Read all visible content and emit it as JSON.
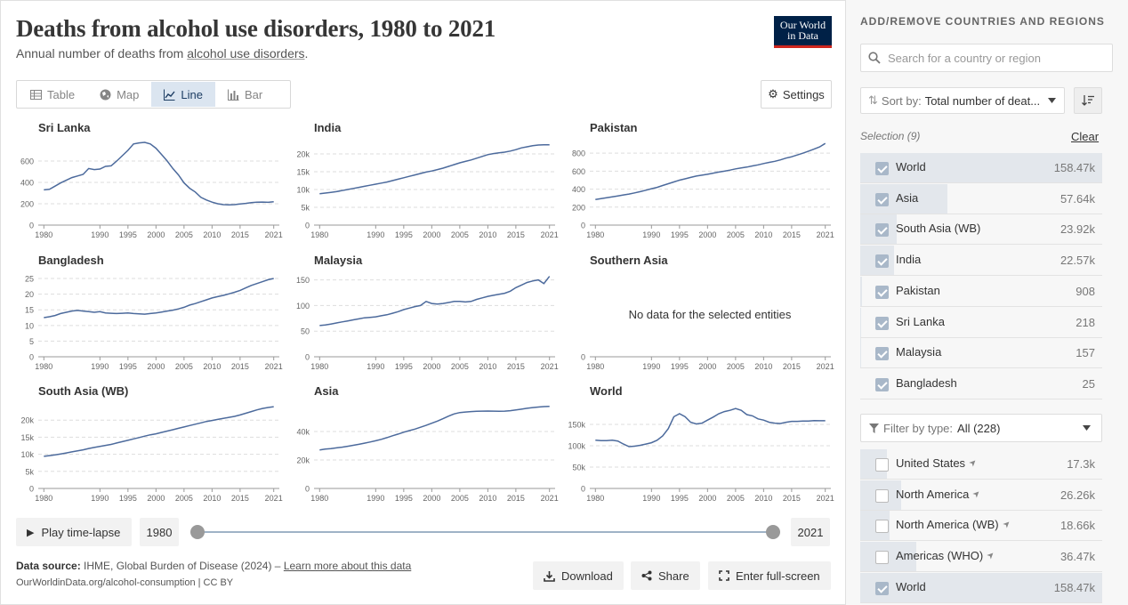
{
  "header": {
    "title": "Deaths from alcohol use disorders, 1980 to 2021",
    "subtitle_pre": "Annual number of deaths from ",
    "subtitle_link": "alcohol use disorders",
    "subtitle_post": ".",
    "logo_line1": "Our World",
    "logo_line2": "in Data"
  },
  "tabs": [
    {
      "label": "Table",
      "icon": "table-icon"
    },
    {
      "label": "Map",
      "icon": "globe-icon"
    },
    {
      "label": "Line",
      "icon": "line-chart-icon",
      "active": true
    },
    {
      "label": "Bar",
      "icon": "bar-chart-icon"
    }
  ],
  "settings_label": "Settings",
  "chart_data": [
    {
      "type": "line",
      "title": "Sri Lanka",
      "ylim": [
        0,
        800
      ],
      "yticks": [
        {
          "v": 0,
          "l": "0"
        },
        {
          "v": 200,
          "l": "200"
        },
        {
          "v": 400,
          "l": "400"
        },
        {
          "v": 600,
          "l": "600"
        }
      ],
      "x": [
        1980,
        1981,
        1982,
        1983,
        1984,
        1985,
        1986,
        1987,
        1988,
        1989,
        1990,
        1991,
        1992,
        1993,
        1994,
        1995,
        1996,
        1997,
        1998,
        1999,
        2000,
        2001,
        2002,
        2003,
        2004,
        2005,
        2006,
        2007,
        2008,
        2009,
        2010,
        2011,
        2012,
        2013,
        2014,
        2015,
        2016,
        2017,
        2018,
        2019,
        2020,
        2021
      ],
      "y": [
        330,
        335,
        365,
        395,
        420,
        445,
        460,
        475,
        530,
        520,
        525,
        550,
        555,
        600,
        650,
        700,
        760,
        770,
        775,
        760,
        720,
        660,
        600,
        530,
        470,
        395,
        345,
        310,
        260,
        235,
        215,
        200,
        192,
        190,
        192,
        198,
        203,
        210,
        214,
        216,
        213,
        218
      ]
    },
    {
      "type": "line",
      "title": "India",
      "ylim": [
        0,
        24000
      ],
      "yticks": [
        {
          "v": 0,
          "l": "0"
        },
        {
          "v": 5000,
          "l": "5k"
        },
        {
          "v": 10000,
          "l": "10k"
        },
        {
          "v": 15000,
          "l": "15k"
        },
        {
          "v": 20000,
          "l": "20k"
        }
      ],
      "x": [
        1980,
        1981,
        1982,
        1983,
        1984,
        1985,
        1986,
        1987,
        1988,
        1989,
        1990,
        1991,
        1992,
        1993,
        1994,
        1995,
        1996,
        1997,
        1998,
        1999,
        2000,
        2001,
        2002,
        2003,
        2004,
        2005,
        2006,
        2007,
        2008,
        2009,
        2010,
        2011,
        2012,
        2013,
        2014,
        2015,
        2016,
        2017,
        2018,
        2019,
        2020,
        2021
      ],
      "y": [
        8800,
        9000,
        9200,
        9400,
        9700,
        10000,
        10300,
        10600,
        10900,
        11200,
        11500,
        11800,
        12100,
        12500,
        12900,
        13300,
        13700,
        14100,
        14500,
        14900,
        15200,
        15600,
        16000,
        16500,
        17000,
        17500,
        17900,
        18300,
        18800,
        19300,
        19800,
        20100,
        20300,
        20500,
        20800,
        21200,
        21700,
        22000,
        22300,
        22500,
        22550,
        22570
      ]
    },
    {
      "type": "line",
      "title": "Pakistan",
      "ylim": [
        0,
        950
      ],
      "yticks": [
        {
          "v": 0,
          "l": "0"
        },
        {
          "v": 200,
          "l": "200"
        },
        {
          "v": 400,
          "l": "400"
        },
        {
          "v": 600,
          "l": "600"
        },
        {
          "v": 800,
          "l": "800"
        }
      ],
      "x": [
        1980,
        1981,
        1982,
        1983,
        1984,
        1985,
        1986,
        1987,
        1988,
        1989,
        1990,
        1991,
        1992,
        1993,
        1994,
        1995,
        1996,
        1997,
        1998,
        1999,
        2000,
        2001,
        2002,
        2003,
        2004,
        2005,
        2006,
        2007,
        2008,
        2009,
        2010,
        2011,
        2012,
        2013,
        2014,
        2015,
        2016,
        2017,
        2018,
        2019,
        2020,
        2021
      ],
      "y": [
        285,
        295,
        305,
        315,
        325,
        335,
        345,
        358,
        372,
        388,
        405,
        420,
        440,
        460,
        480,
        500,
        515,
        530,
        545,
        555,
        565,
        578,
        590,
        600,
        612,
        625,
        635,
        645,
        658,
        670,
        685,
        698,
        710,
        725,
        745,
        760,
        780,
        800,
        822,
        845,
        870,
        908
      ]
    },
    {
      "type": "line",
      "title": "Bangladesh",
      "ylim": [
        0,
        27
      ],
      "yticks": [
        {
          "v": 0,
          "l": "0"
        },
        {
          "v": 5,
          "l": "5"
        },
        {
          "v": 10,
          "l": "10"
        },
        {
          "v": 15,
          "l": "15"
        },
        {
          "v": 20,
          "l": "20"
        },
        {
          "v": 25,
          "l": "25"
        }
      ],
      "x": [
        1980,
        1981,
        1982,
        1983,
        1984,
        1985,
        1986,
        1987,
        1988,
        1989,
        1990,
        1991,
        1992,
        1993,
        1994,
        1995,
        1996,
        1997,
        1998,
        1999,
        2000,
        2001,
        2002,
        2003,
        2004,
        2005,
        2006,
        2007,
        2008,
        2009,
        2010,
        2011,
        2012,
        2013,
        2014,
        2015,
        2016,
        2017,
        2018,
        2019,
        2020,
        2021
      ],
      "y": [
        12.5,
        12.8,
        13.2,
        13.8,
        14.2,
        14.6,
        14.8,
        14.6,
        14.4,
        14.2,
        14.4,
        14.0,
        13.9,
        13.8,
        13.9,
        14.0,
        13.8,
        13.7,
        13.6,
        13.8,
        14.0,
        14.3,
        14.6,
        14.9,
        15.3,
        15.8,
        16.5,
        17.0,
        17.6,
        18.2,
        18.8,
        19.2,
        19.6,
        20.1,
        20.6,
        21.2,
        22.0,
        22.8,
        23.4,
        24.0,
        24.6,
        25.0
      ]
    },
    {
      "type": "line",
      "title": "Malaysia",
      "ylim": [
        0,
        165
      ],
      "yticks": [
        {
          "v": 0,
          "l": "0"
        },
        {
          "v": 50,
          "l": "50"
        },
        {
          "v": 100,
          "l": "100"
        },
        {
          "v": 150,
          "l": "150"
        }
      ],
      "x": [
        1980,
        1981,
        1982,
        1983,
        1984,
        1985,
        1986,
        1987,
        1988,
        1989,
        1990,
        1991,
        1992,
        1993,
        1994,
        1995,
        1996,
        1997,
        1998,
        1999,
        2000,
        2001,
        2002,
        2003,
        2004,
        2005,
        2006,
        2007,
        2008,
        2009,
        2010,
        2011,
        2012,
        2013,
        2014,
        2015,
        2016,
        2017,
        2018,
        2019,
        2020,
        2021
      ],
      "y": [
        61,
        62,
        64,
        66,
        68,
        70,
        72,
        74,
        76,
        77,
        78,
        80,
        82,
        85,
        88,
        92,
        95,
        98,
        100,
        108,
        104,
        103,
        104,
        106,
        108,
        108,
        107,
        108,
        112,
        115,
        118,
        120,
        122,
        124,
        128,
        135,
        140,
        145,
        148,
        150,
        143,
        157
      ]
    },
    {
      "type": "line",
      "title": "Southern Asia",
      "no_data": "No data for the selected entities",
      "ylim": [
        0,
        1
      ],
      "yticks": [
        {
          "v": 0,
          "l": "0"
        }
      ],
      "x": [],
      "y": []
    },
    {
      "type": "line",
      "title": "South Asia (WB)",
      "ylim": [
        0,
        25000
      ],
      "yticks": [
        {
          "v": 0,
          "l": "0"
        },
        {
          "v": 5000,
          "l": "5k"
        },
        {
          "v": 10000,
          "l": "10k"
        },
        {
          "v": 15000,
          "l": "15k"
        },
        {
          "v": 20000,
          "l": "20k"
        }
      ],
      "x": [
        1980,
        1981,
        1982,
        1983,
        1984,
        1985,
        1986,
        1987,
        1988,
        1989,
        1990,
        1991,
        1992,
        1993,
        1994,
        1995,
        1996,
        1997,
        1998,
        1999,
        2000,
        2001,
        2002,
        2003,
        2004,
        2005,
        2006,
        2007,
        2008,
        2009,
        2010,
        2011,
        2012,
        2013,
        2014,
        2015,
        2016,
        2017,
        2018,
        2019,
        2020,
        2021
      ],
      "y": [
        9400,
        9600,
        9850,
        10100,
        10400,
        10700,
        11000,
        11300,
        11700,
        12000,
        12300,
        12600,
        12900,
        13300,
        13700,
        14100,
        14500,
        14900,
        15300,
        15700,
        16000,
        16400,
        16800,
        17200,
        17600,
        18000,
        18400,
        18800,
        19200,
        19600,
        19900,
        20200,
        20500,
        20800,
        21100,
        21500,
        22000,
        22500,
        23000,
        23400,
        23700,
        23920
      ]
    },
    {
      "type": "line",
      "title": "Asia",
      "ylim": [
        0,
        60000
      ],
      "yticks": [
        {
          "v": 0,
          "l": "0"
        },
        {
          "v": 20000,
          "l": "20k"
        },
        {
          "v": 40000,
          "l": "40k"
        }
      ],
      "x": [
        1980,
        1981,
        1982,
        1983,
        1984,
        1985,
        1986,
        1987,
        1988,
        1989,
        1990,
        1991,
        1992,
        1993,
        1994,
        1995,
        1996,
        1997,
        1998,
        1999,
        2000,
        2001,
        2002,
        2003,
        2004,
        2005,
        2006,
        2007,
        2008,
        2009,
        2010,
        2011,
        2012,
        2013,
        2014,
        2015,
        2016,
        2017,
        2018,
        2019,
        2020,
        2021
      ],
      "y": [
        27000,
        27600,
        28000,
        28500,
        29000,
        29600,
        30300,
        31000,
        31800,
        32600,
        33500,
        34500,
        35700,
        37000,
        38200,
        39500,
        40600,
        41700,
        43000,
        44300,
        45800,
        47300,
        49000,
        50800,
        52400,
        53300,
        53700,
        54000,
        54200,
        54300,
        54400,
        54300,
        54200,
        54300,
        54600,
        55100,
        55700,
        56300,
        56800,
        57200,
        57500,
        57640
      ]
    },
    {
      "type": "line",
      "title": "World",
      "ylim": [
        0,
        200000
      ],
      "yticks": [
        {
          "v": 0,
          "l": "0"
        },
        {
          "v": 50000,
          "l": "50k"
        },
        {
          "v": 100000,
          "l": "100k"
        },
        {
          "v": 150000,
          "l": "150k"
        }
      ],
      "x": [
        1980,
        1981,
        1982,
        1983,
        1984,
        1985,
        1986,
        1987,
        1988,
        1989,
        1990,
        1991,
        1992,
        1993,
        1994,
        1995,
        1996,
        1997,
        1998,
        1999,
        2000,
        2001,
        2002,
        2003,
        2004,
        2005,
        2006,
        2007,
        2008,
        2009,
        2010,
        2011,
        2012,
        2013,
        2014,
        2015,
        2016,
        2017,
        2018,
        2019,
        2020,
        2021
      ],
      "y": [
        113000,
        112000,
        112000,
        113000,
        111000,
        104000,
        98000,
        99000,
        101000,
        104000,
        107000,
        113000,
        123000,
        140000,
        168000,
        175000,
        168000,
        155000,
        151000,
        153000,
        160000,
        167000,
        175000,
        180000,
        183000,
        187000,
        183000,
        173000,
        170000,
        163000,
        160000,
        155000,
        153000,
        152000,
        155000,
        157000,
        157000,
        158000,
        158000,
        159000,
        158500,
        158470
      ]
    }
  ],
  "axis_ticks": {
    "x": [
      1980,
      1990,
      1995,
      2000,
      2005,
      2010,
      2015,
      2021
    ],
    "x_labels": [
      "1980",
      "1990",
      "1995",
      "2000",
      "2005",
      "2010",
      "2015",
      "2021"
    ]
  },
  "timeline": {
    "play_label": "Play time-lapse",
    "start": "1980",
    "end": "2021"
  },
  "footer": {
    "source_label": "Data source:",
    "source_text": " IHME, Global Burden of Disease (2024) – ",
    "source_link": "Learn more about this data",
    "url": "OurWorldinData.org/alcohol-consumption | CC BY",
    "download": "Download",
    "share": "Share",
    "fullscreen": "Enter full-screen"
  },
  "sidebar": {
    "heading": "ADD/REMOVE COUNTRIES AND REGIONS",
    "search_placeholder": "Search for a country or region",
    "sort_prefix": "Sort by:",
    "sort_value": "Total number of deat...",
    "selection_label": "Selection (9)",
    "clear_label": "Clear",
    "selected": [
      {
        "name": "World",
        "value": "158.47k",
        "share": 1.0
      },
      {
        "name": "Asia",
        "value": "57.64k",
        "share": 0.36
      },
      {
        "name": "South Asia (WB)",
        "value": "23.92k",
        "share": 0.15
      },
      {
        "name": "India",
        "value": "22.57k",
        "share": 0.14
      },
      {
        "name": "Pakistan",
        "value": "908",
        "share": 0.006
      },
      {
        "name": "Sri Lanka",
        "value": "218",
        "share": 0.001
      },
      {
        "name": "Malaysia",
        "value": "157",
        "share": 0.001
      },
      {
        "name": "Bangladesh",
        "value": "25",
        "share": 0.0
      }
    ],
    "filter_prefix": "Filter by type:",
    "filter_value": "All (228)",
    "available": [
      {
        "name": "United States",
        "value": "17.3k",
        "checked": false,
        "share": 0.11
      },
      {
        "name": "North America",
        "value": "26.26k",
        "checked": false,
        "share": 0.17
      },
      {
        "name": "North America (WB)",
        "value": "18.66k",
        "checked": false,
        "share": 0.12
      },
      {
        "name": "Americas (WHO)",
        "value": "36.47k",
        "checked": false,
        "share": 0.23
      },
      {
        "name": "World",
        "value": "158.47k",
        "checked": true,
        "share": 1.0
      }
    ],
    "colors": {
      "line": "#4c6a9c",
      "bar": "#e3e7ec",
      "check": "#a9b8c9"
    }
  }
}
